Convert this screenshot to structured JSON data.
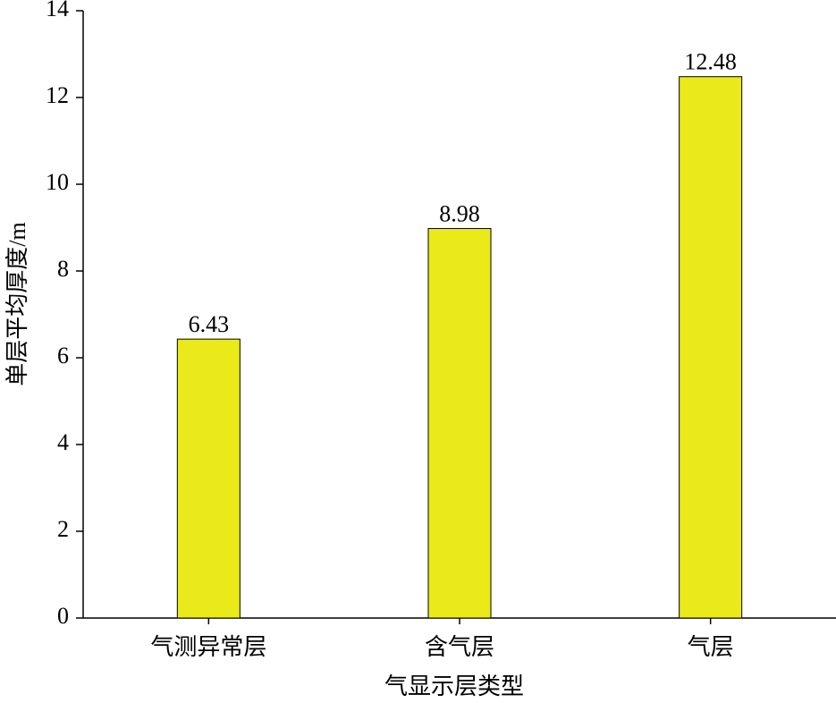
{
  "chart_data": {
    "type": "bar",
    "x_label": "气显示层类型",
    "y_label": "单层平均厚度/m",
    "categories": [
      "气测异常层",
      "含气层",
      "气层"
    ],
    "values": [
      6.43,
      8.98,
      12.48
    ],
    "color": "#eaea1a",
    "ylim": [
      0,
      14
    ],
    "yticks": [
      0,
      2,
      4,
      6,
      8,
      10,
      12,
      14
    ]
  }
}
